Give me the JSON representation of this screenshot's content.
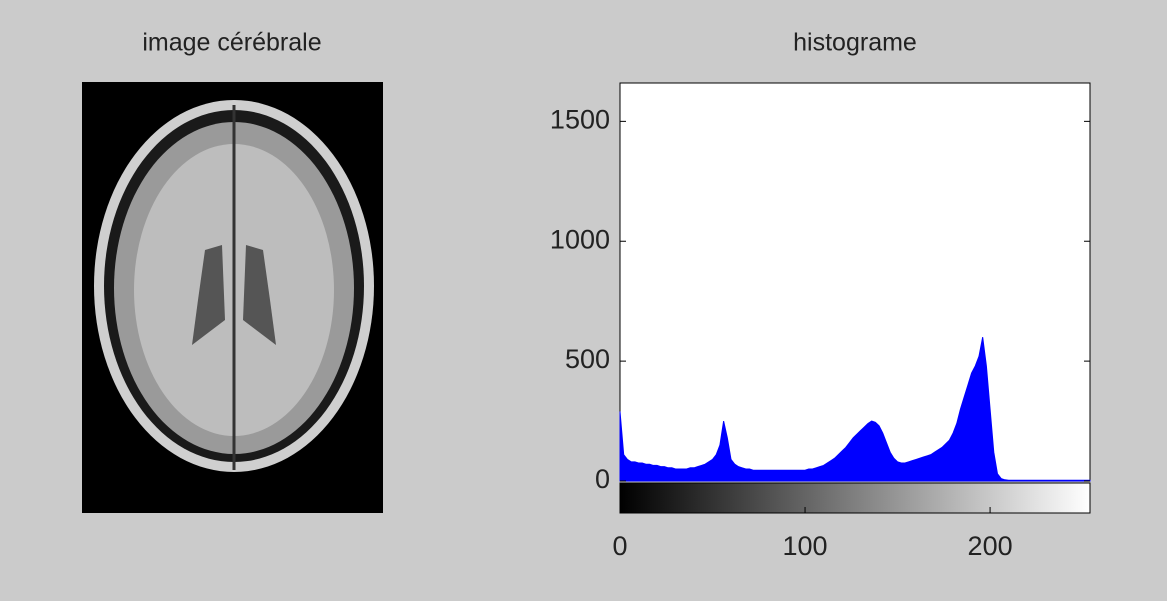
{
  "image_panel": {
    "title": "image cérébrale"
  },
  "chart_data": {
    "type": "area",
    "title": "histograme",
    "x": [
      0,
      2,
      4,
      6,
      8,
      10,
      12,
      14,
      16,
      18,
      20,
      22,
      24,
      26,
      28,
      30,
      32,
      34,
      36,
      38,
      40,
      42,
      44,
      46,
      48,
      50,
      52,
      54,
      56,
      58,
      60,
      62,
      64,
      66,
      68,
      70,
      72,
      74,
      76,
      78,
      80,
      82,
      84,
      86,
      88,
      90,
      92,
      94,
      96,
      98,
      100,
      102,
      104,
      106,
      108,
      110,
      112,
      114,
      116,
      118,
      120,
      122,
      124,
      126,
      128,
      130,
      132,
      134,
      136,
      138,
      140,
      142,
      144,
      146,
      148,
      150,
      152,
      154,
      156,
      158,
      160,
      162,
      164,
      166,
      168,
      170,
      172,
      174,
      176,
      178,
      180,
      182,
      184,
      186,
      188,
      190,
      192,
      194,
      196,
      198,
      200,
      202,
      204,
      206,
      208,
      210,
      212,
      214,
      216,
      218,
      220,
      222,
      224,
      226,
      228,
      230,
      232,
      234,
      236,
      238,
      240,
      242,
      244,
      246,
      248,
      250,
      252,
      254
    ],
    "values": [
      290,
      110,
      90,
      80,
      80,
      75,
      75,
      70,
      70,
      65,
      65,
      60,
      60,
      55,
      55,
      50,
      50,
      50,
      50,
      55,
      55,
      60,
      65,
      70,
      80,
      90,
      110,
      150,
      250,
      180,
      90,
      70,
      60,
      55,
      50,
      50,
      45,
      45,
      45,
      45,
      45,
      45,
      45,
      45,
      45,
      45,
      45,
      45,
      45,
      45,
      45,
      50,
      50,
      55,
      60,
      65,
      75,
      85,
      95,
      110,
      125,
      140,
      160,
      180,
      195,
      210,
      225,
      240,
      250,
      245,
      230,
      200,
      160,
      120,
      95,
      80,
      75,
      75,
      80,
      85,
      90,
      95,
      100,
      105,
      110,
      120,
      130,
      140,
      155,
      170,
      200,
      240,
      300,
      350,
      400,
      450,
      480,
      520,
      600,
      480,
      300,
      120,
      30,
      10,
      5,
      3,
      3,
      3,
      3,
      3,
      3,
      3,
      3,
      3,
      3,
      3,
      3,
      3,
      3,
      3,
      3,
      3,
      3,
      3,
      3,
      3,
      3,
      3
    ],
    "color": "#0000ff",
    "xlim": [
      0,
      254
    ],
    "ylim": [
      0,
      1660
    ],
    "xticks": [
      0,
      100,
      200
    ],
    "yticks": [
      0,
      500,
      1000,
      1500
    ]
  }
}
